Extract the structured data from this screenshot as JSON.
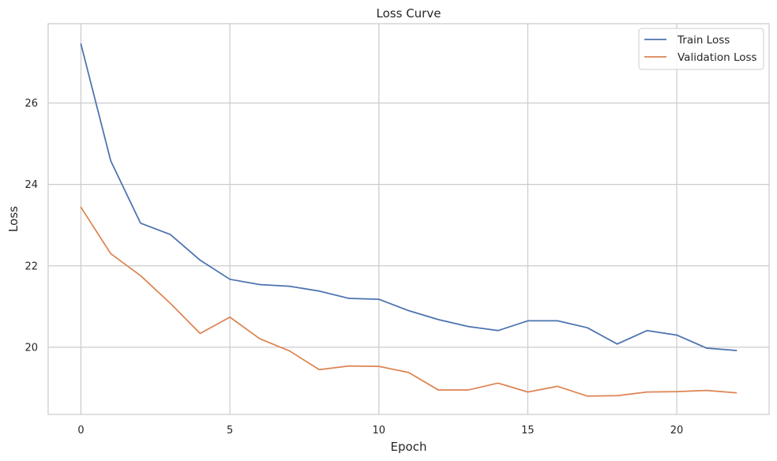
{
  "chart_data": {
    "type": "line",
    "title": "Loss Curve",
    "xlabel": "Epoch",
    "ylabel": "Loss",
    "xlim": [
      -1.1,
      23.1
    ],
    "ylim": [
      18.35,
      27.95
    ],
    "xticks": [
      0,
      5,
      10,
      15,
      20
    ],
    "yticks": [
      20,
      22,
      24,
      26
    ],
    "grid": true,
    "legend_position": "top-right",
    "x": [
      0,
      1,
      2,
      3,
      4,
      5,
      6,
      7,
      8,
      9,
      10,
      11,
      12,
      13,
      14,
      15,
      16,
      17,
      18,
      19,
      20,
      21,
      22
    ],
    "series": [
      {
        "name": "Train Loss",
        "color": "#4c72b0",
        "values": [
          27.45,
          24.58,
          23.05,
          22.77,
          22.14,
          21.67,
          21.54,
          21.5,
          21.38,
          21.2,
          21.18,
          20.9,
          20.68,
          20.51,
          20.41,
          20.65,
          20.65,
          20.48,
          20.08,
          20.41,
          20.3,
          19.98,
          19.92
        ]
      },
      {
        "name": "Validation Loss",
        "color": "#dd8452",
        "values": [
          23.44,
          22.3,
          21.76,
          21.08,
          20.34,
          20.74,
          20.21,
          19.91,
          19.45,
          19.54,
          19.53,
          19.38,
          18.95,
          18.95,
          19.12,
          18.9,
          19.04,
          18.8,
          18.81,
          18.9,
          18.91,
          18.94,
          18.88
        ]
      }
    ]
  }
}
